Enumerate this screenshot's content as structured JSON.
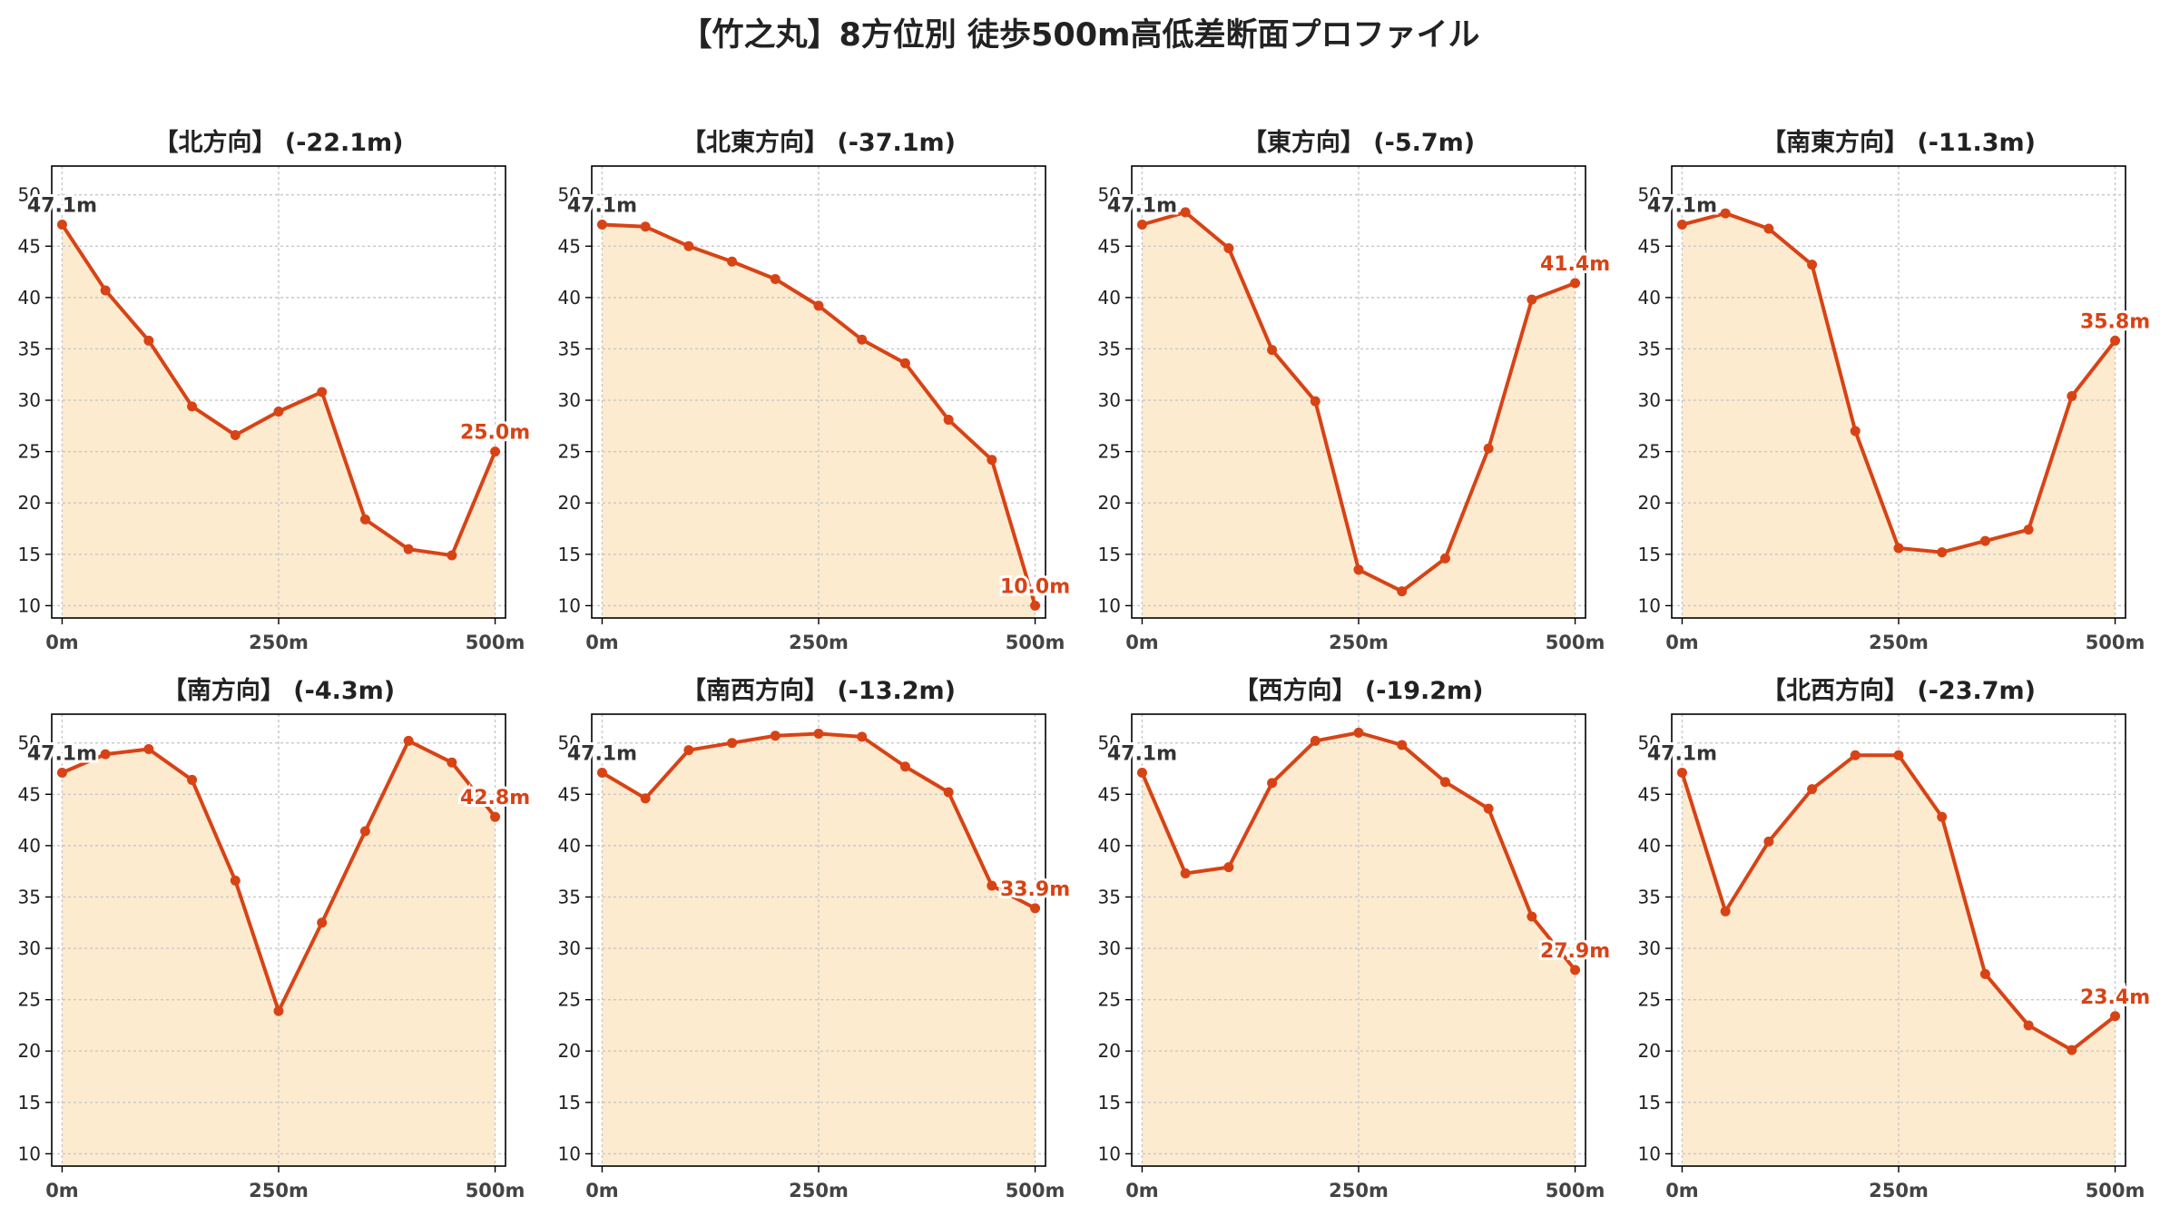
{
  "figure": {
    "title": "【竹之丸】8方位別 徒歩500m高低差断面プロファイル"
  },
  "colors": {
    "line": "#d84315",
    "fill": "#fdebd0",
    "grid": "#c8c8c8",
    "text": "#333333",
    "start_label": "#333333",
    "end_label": "#d84315"
  },
  "chart_data": [
    {
      "type": "area",
      "title": "【北方向】 (-22.1m)",
      "x": [
        0,
        50,
        100,
        150,
        200,
        250,
        300,
        350,
        400,
        450,
        500
      ],
      "y": [
        47.1,
        40.7,
        35.8,
        29.4,
        26.6,
        28.9,
        30.8,
        18.4,
        15.5,
        14.9,
        25.0
      ],
      "start_label": "47.1m",
      "end_label": "25.0m",
      "xticks": [
        "0m",
        "250m",
        "500m"
      ],
      "yticks": [
        10,
        15,
        20,
        25,
        30,
        35,
        40,
        45,
        50
      ],
      "xlim": [
        -12,
        512
      ],
      "ylim": [
        8.8,
        52.8
      ],
      "grid": true
    },
    {
      "type": "area",
      "title": "【北東方向】 (-37.1m)",
      "x": [
        0,
        50,
        100,
        150,
        200,
        250,
        300,
        350,
        400,
        450,
        500
      ],
      "y": [
        47.1,
        46.9,
        45.0,
        43.5,
        41.8,
        39.2,
        35.9,
        33.6,
        28.1,
        24.2,
        10.0
      ],
      "start_label": "47.1m",
      "end_label": "10.0m",
      "xticks": [
        "0m",
        "250m",
        "500m"
      ],
      "yticks": [
        10,
        15,
        20,
        25,
        30,
        35,
        40,
        45,
        50
      ],
      "xlim": [
        -12,
        512
      ],
      "ylim": [
        8.8,
        52.8
      ],
      "grid": true
    },
    {
      "type": "area",
      "title": "【東方向】 (-5.7m)",
      "x": [
        0,
        50,
        100,
        150,
        200,
        250,
        300,
        350,
        400,
        450,
        500
      ],
      "y": [
        47.1,
        48.3,
        44.8,
        34.9,
        29.9,
        13.5,
        11.4,
        14.6,
        25.3,
        39.8,
        41.4
      ],
      "start_label": "47.1m",
      "end_label": "41.4m",
      "xticks": [
        "0m",
        "250m",
        "500m"
      ],
      "yticks": [
        10,
        15,
        20,
        25,
        30,
        35,
        40,
        45,
        50
      ],
      "xlim": [
        -12,
        512
      ],
      "ylim": [
        8.8,
        52.8
      ],
      "grid": true
    },
    {
      "type": "area",
      "title": "【南東方向】 (-11.3m)",
      "x": [
        0,
        50,
        100,
        150,
        200,
        250,
        300,
        350,
        400,
        450,
        500
      ],
      "y": [
        47.1,
        48.2,
        46.7,
        43.2,
        27.0,
        15.6,
        15.2,
        16.3,
        17.4,
        30.4,
        35.8
      ],
      "start_label": "47.1m",
      "end_label": "35.8m",
      "xticks": [
        "0m",
        "250m",
        "500m"
      ],
      "yticks": [
        10,
        15,
        20,
        25,
        30,
        35,
        40,
        45,
        50
      ],
      "xlim": [
        -12,
        512
      ],
      "ylim": [
        8.8,
        52.8
      ],
      "grid": true
    },
    {
      "type": "area",
      "title": "【南方向】 (-4.3m)",
      "x": [
        0,
        50,
        100,
        150,
        200,
        250,
        300,
        350,
        400,
        450,
        500
      ],
      "y": [
        47.1,
        48.9,
        49.4,
        46.4,
        36.6,
        23.9,
        32.5,
        41.4,
        50.2,
        48.1,
        42.8
      ],
      "start_label": "47.1m",
      "end_label": "42.8m",
      "xticks": [
        "0m",
        "250m",
        "500m"
      ],
      "yticks": [
        10,
        15,
        20,
        25,
        30,
        35,
        40,
        45,
        50
      ],
      "xlim": [
        -12,
        512
      ],
      "ylim": [
        8.8,
        52.8
      ],
      "grid": true
    },
    {
      "type": "area",
      "title": "【南西方向】 (-13.2m)",
      "x": [
        0,
        50,
        100,
        150,
        200,
        250,
        300,
        350,
        400,
        450,
        500
      ],
      "y": [
        47.1,
        44.6,
        49.3,
        50.0,
        50.7,
        50.9,
        50.6,
        47.7,
        45.2,
        36.1,
        33.9
      ],
      "start_label": "47.1m",
      "end_label": "33.9m",
      "xticks": [
        "0m",
        "250m",
        "500m"
      ],
      "yticks": [
        10,
        15,
        20,
        25,
        30,
        35,
        40,
        45,
        50
      ],
      "xlim": [
        -12,
        512
      ],
      "ylim": [
        8.8,
        52.8
      ],
      "grid": true
    },
    {
      "type": "area",
      "title": "【西方向】 (-19.2m)",
      "x": [
        0,
        50,
        100,
        150,
        200,
        250,
        300,
        350,
        400,
        450,
        500
      ],
      "y": [
        47.1,
        37.3,
        37.9,
        46.1,
        50.2,
        51.0,
        49.8,
        46.2,
        43.6,
        33.1,
        27.9
      ],
      "start_label": "47.1m",
      "end_label": "27.9m",
      "xticks": [
        "0m",
        "250m",
        "500m"
      ],
      "yticks": [
        10,
        15,
        20,
        25,
        30,
        35,
        40,
        45,
        50
      ],
      "xlim": [
        -12,
        512
      ],
      "ylim": [
        8.8,
        52.8
      ],
      "grid": true
    },
    {
      "type": "area",
      "title": "【北西方向】 (-23.7m)",
      "x": [
        0,
        50,
        100,
        150,
        200,
        250,
        300,
        350,
        400,
        450,
        500
      ],
      "y": [
        47.1,
        33.6,
        40.4,
        45.5,
        48.8,
        48.8,
        42.8,
        27.5,
        22.5,
        20.1,
        23.4
      ],
      "start_label": "47.1m",
      "end_label": "23.4m",
      "xticks": [
        "0m",
        "250m",
        "500m"
      ],
      "yticks": [
        10,
        15,
        20,
        25,
        30,
        35,
        40,
        45,
        50
      ],
      "xlim": [
        -12,
        512
      ],
      "ylim": [
        8.8,
        52.8
      ],
      "grid": true
    }
  ]
}
